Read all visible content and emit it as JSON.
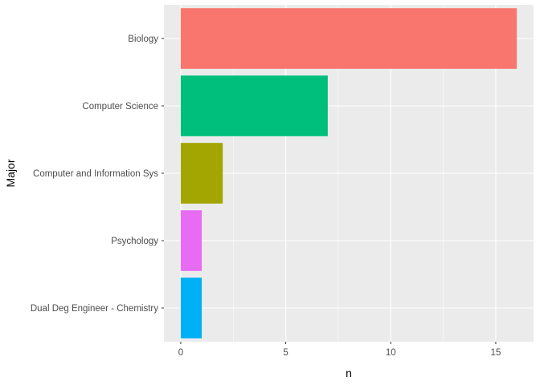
{
  "chart_data": {
    "type": "bar",
    "orientation": "horizontal",
    "categories": [
      "Biology",
      "Computer Science",
      "Computer and Information Sys",
      "Psychology",
      "Dual Deg Engineer - Chemistry"
    ],
    "values": [
      16,
      7,
      2,
      1,
      1
    ],
    "colors": [
      "#F8766D",
      "#00BF7D",
      "#A3A500",
      "#E76BF3",
      "#00B0F6"
    ],
    "xlabel": "n",
    "ylabel": "Major",
    "xlim": [
      -0.8,
      16.8
    ],
    "xticks": [
      0,
      5,
      10,
      15
    ],
    "grid": true,
    "legend": "none",
    "panel_background": "#EBEBEB",
    "grid_color": "#FFFFFF"
  }
}
